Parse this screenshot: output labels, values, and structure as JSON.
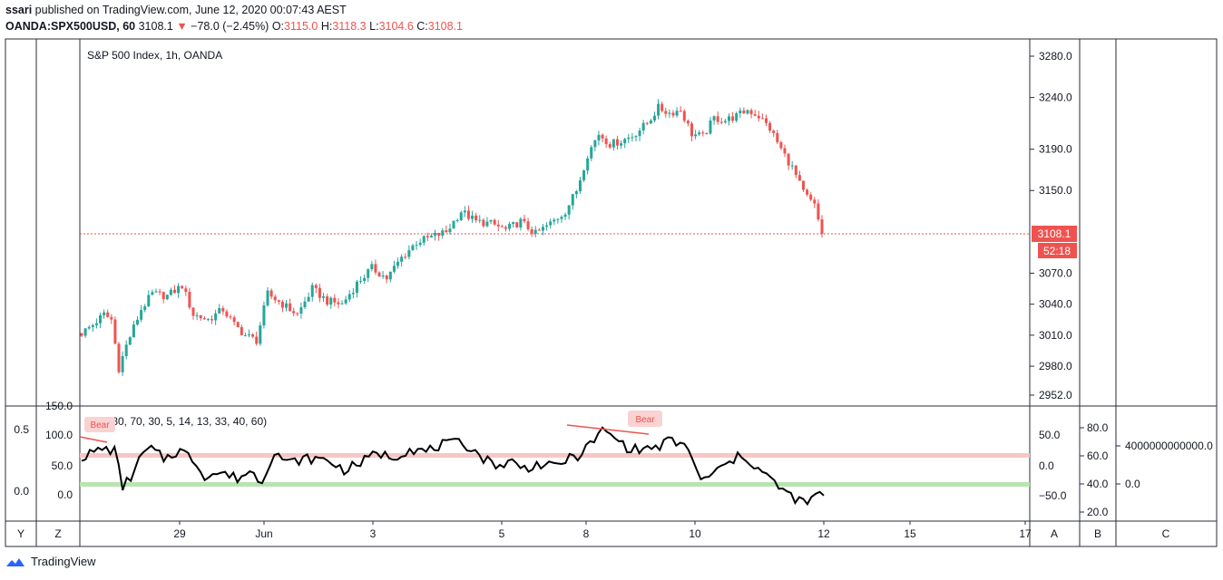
{
  "header": {
    "publisher": "ssari",
    "published_text": " published on TradingView.com, June 12, 2020 00:07:43 AEST",
    "symbol": "OANDA:SPX500USD, 60",
    "last": "3108.1",
    "change": "−78.0 (−2.45%)",
    "open_label": "O:",
    "open": "3115.0",
    "high_label": "H:",
    "high": "3118.3",
    "low_label": "L:",
    "low": "3104.6",
    "close_label": "C:",
    "close": "3108.1"
  },
  "colors": {
    "up": "#26a69a",
    "down": "#ef5350",
    "grid_border": "#2a2e39",
    "rsi_line": "#000000",
    "overbought_band": "#f8c6c6",
    "oversold_band": "#b7e4b0"
  },
  "brand": {
    "name": "TradingView",
    "icon": "tradingview-logo-icon"
  },
  "chart_data": [
    {
      "type": "candlestick",
      "title": "S&P 500 Index, 1h, OANDA",
      "y_ticks": [
        "3280.0",
        "3240.0",
        "3190.0",
        "3150.0",
        "3070.0",
        "3040.0",
        "3010.0",
        "2980.0",
        "2952.0"
      ],
      "y_range": [
        2945,
        3295
      ],
      "last_price_label": "3108.1",
      "countdown_label": "52:18",
      "x_ticks": [
        "29",
        "Jun",
        "3",
        "5",
        "8",
        "10",
        "12",
        "15",
        "17"
      ],
      "anchors": [
        [
          0,
          3012
        ],
        [
          3,
          3020
        ],
        [
          6,
          3030
        ],
        [
          8,
          3025
        ],
        [
          10,
          2978
        ],
        [
          12,
          3000
        ],
        [
          16,
          3035
        ],
        [
          19,
          3050
        ],
        [
          23,
          3048
        ],
        [
          27,
          3058
        ],
        [
          30,
          3030
        ],
        [
          34,
          3025
        ],
        [
          38,
          3035
        ],
        [
          41,
          3020
        ],
        [
          44,
          3010
        ],
        [
          47,
          3005
        ],
        [
          50,
          3050
        ],
        [
          54,
          3040
        ],
        [
          58,
          3030
        ],
        [
          62,
          3055
        ],
        [
          66,
          3043
        ],
        [
          70,
          3040
        ],
        [
          74,
          3060
        ],
        [
          78,
          3075
        ],
        [
          82,
          3065
        ],
        [
          86,
          3085
        ],
        [
          90,
          3100
        ],
        [
          94,
          3105
        ],
        [
          98,
          3110
        ],
        [
          102,
          3130
        ],
        [
          106,
          3120
        ],
        [
          110,
          3118
        ],
        [
          114,
          3112
        ],
        [
          118,
          3120
        ],
        [
          122,
          3108
        ],
        [
          126,
          3118
        ],
        [
          130,
          3130
        ],
        [
          133,
          3150
        ],
        [
          136,
          3185
        ],
        [
          139,
          3205
        ],
        [
          142,
          3195
        ],
        [
          145,
          3198
        ],
        [
          148,
          3203
        ],
        [
          152,
          3215
        ],
        [
          155,
          3230
        ],
        [
          158,
          3225
        ],
        [
          161,
          3228
        ],
        [
          164,
          3205
        ],
        [
          167,
          3202
        ],
        [
          170,
          3220
        ],
        [
          173,
          3218
        ],
        [
          176,
          3222
        ],
        [
          179,
          3228
        ],
        [
          182,
          3222
        ],
        [
          185,
          3210
        ],
        [
          188,
          3190
        ],
        [
          191,
          3172
        ],
        [
          194,
          3148
        ],
        [
          197,
          3135
        ],
        [
          199,
          3108
        ]
      ]
    },
    {
      "type": "line",
      "title": "RSI (30, 70, 30, 5, 14, 13, 33, 40, 60)",
      "left_axis_outer": [
        "0.5",
        "0.0"
      ],
      "left_axis_inner": [
        "150.0",
        "100.0",
        "50.0",
        "0.0"
      ],
      "right_axis_a": [
        "50.0",
        "0.0",
        "−50.0"
      ],
      "right_axis_b": [
        "80.0",
        "60.0",
        "40.0",
        "20.0"
      ],
      "right_axis_c": [
        "4000000000000.0",
        "0.0"
      ],
      "bands": {
        "overbought": 60,
        "oversold": 40
      },
      "divergence_label": "Bear",
      "anchors": [
        [
          0,
          59
        ],
        [
          5,
          65
        ],
        [
          8,
          64
        ],
        [
          10,
          38
        ],
        [
          12,
          45
        ],
        [
          15,
          62
        ],
        [
          17,
          65
        ],
        [
          20,
          58
        ],
        [
          24,
          64
        ],
        [
          27,
          58
        ],
        [
          30,
          46
        ],
        [
          34,
          48
        ],
        [
          38,
          44
        ],
        [
          41,
          49
        ],
        [
          44,
          42
        ],
        [
          47,
          64
        ],
        [
          50,
          55
        ],
        [
          55,
          58
        ],
        [
          60,
          57
        ],
        [
          64,
          50
        ],
        [
          68,
          55
        ],
        [
          72,
          62
        ],
        [
          76,
          59
        ],
        [
          80,
          65
        ],
        [
          84,
          63
        ],
        [
          88,
          68
        ],
        [
          92,
          69
        ],
        [
          95,
          66
        ],
        [
          98,
          58
        ],
        [
          102,
          53
        ],
        [
          105,
          56
        ],
        [
          108,
          51
        ],
        [
          111,
          54
        ],
        [
          115,
          52
        ],
        [
          118,
          57
        ],
        [
          121,
          60
        ],
        [
          124,
          68
        ],
        [
          127,
          78
        ],
        [
          130,
          73
        ],
        [
          133,
          66
        ],
        [
          136,
          64
        ],
        [
          138,
          66
        ],
        [
          140,
          65
        ],
        [
          143,
          71
        ],
        [
          146,
          68
        ],
        [
          148,
          66
        ],
        [
          151,
          41
        ],
        [
          154,
          48
        ],
        [
          157,
          53
        ],
        [
          160,
          59
        ],
        [
          162,
          59
        ],
        [
          164,
          53
        ],
        [
          167,
          46
        ],
        [
          170,
          38
        ],
        [
          172,
          33
        ],
        [
          175,
          28
        ],
        [
          177,
          26
        ],
        [
          179,
          33
        ],
        [
          181,
          30
        ]
      ]
    }
  ],
  "toolbar": {
    "y_button": "Y",
    "z_button": "Z",
    "a_button": "A",
    "b_button": "B",
    "c_button": "C"
  }
}
